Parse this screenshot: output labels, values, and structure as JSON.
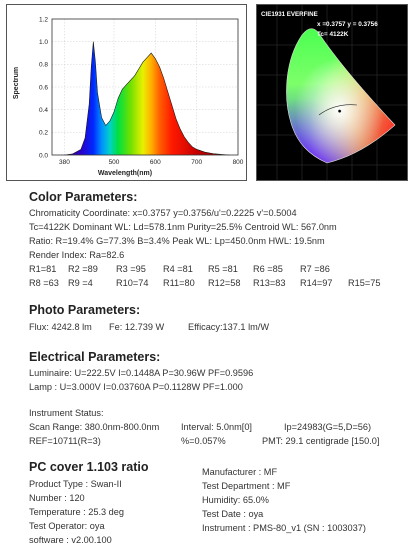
{
  "chart_data": [
    {
      "type": "area",
      "xlabel": "Wavelength(nm)",
      "ylabel": "Spectrum",
      "xlim": [
        350,
        800
      ],
      "ylim": [
        0,
        1.2
      ],
      "x_ticks": [
        "380",
        "500",
        "600",
        "700",
        "800"
      ],
      "y_ticks": [
        "0.0",
        "0.2",
        "0.4",
        "0.6",
        "0.8",
        "1.0",
        "1.2"
      ],
      "grid": true,
      "x": [
        380,
        400,
        420,
        430,
        440,
        445,
        450,
        455,
        460,
        470,
        480,
        490,
        500,
        510,
        520,
        530,
        540,
        550,
        560,
        570,
        580,
        590,
        600,
        610,
        620,
        630,
        640,
        650,
        660,
        670,
        680,
        690,
        700,
        720,
        740,
        760,
        780
      ],
      "values": [
        0.0,
        0.01,
        0.05,
        0.15,
        0.45,
        0.78,
        1.0,
        0.82,
        0.55,
        0.33,
        0.26,
        0.3,
        0.38,
        0.5,
        0.58,
        0.62,
        0.66,
        0.7,
        0.76,
        0.82,
        0.86,
        0.9,
        0.85,
        0.78,
        0.68,
        0.56,
        0.44,
        0.32,
        0.23,
        0.16,
        0.11,
        0.07,
        0.05,
        0.025,
        0.012,
        0.005,
        0.0
      ]
    },
    {
      "type": "scatter",
      "title": "CIE1931 EVERFINE",
      "annotations": [
        "x =0.3757  y = 0.3756",
        "Tc= 4122K"
      ],
      "x": [
        0.3757
      ],
      "values": [
        0.3756
      ]
    }
  ],
  "sections": {
    "color_title": "Color Parameters:",
    "photo_title": "Photo Parameters:",
    "elec_title": "Electrical Parameters:",
    "pc_title": "PC cover 1.103 ratio"
  },
  "color_lines": [
    "Chromaticity Coordinate: x=0.3757    y=0.3756/u'=0.2225     v'=0.5004",
    "Tc=4122K     Dominant WL: Ld=578.1nm     Purity=25.5%     Centroid  WL: 567.0nm",
    "Ratio: R=19.4%  G=77.3%  B=3.4%    Peak WL: Lp=450.0nm    HWL: 19.5nm",
    "Render Index: Ra=82.6"
  ],
  "render_rows": [
    [
      "R1=81",
      "R2 =89",
      "R3 =95",
      "R4 =81",
      "R5 =81",
      "R6 =85",
      "R7 =86"
    ],
    [
      "R8 =63",
      "R9 =4",
      "R10=74",
      "R11=80",
      "R12=58",
      "R13=83",
      "R14=97",
      "R15=75"
    ]
  ],
  "photo": {
    "flux": "Flux: 4242.8 lm",
    "fe": "Fe: 12.739 W",
    "efficacy": "Efficacy:137.1 lm/W"
  },
  "elec_lines": [
    "Luminaire: U=222.5V      I=0.1448A      P=30.96W      PF=0.9596",
    "Lamp : U=3.000V       I=0.03760A     P=0.1128W      PF=1.000"
  ],
  "instrument": {
    "title": "Instrument Status:",
    "row1": [
      "Scan Range: 380.0nm-800.0nm",
      "Interval: 5.0nm[0]",
      "Ip=24983(G=5,D=56)"
    ],
    "row2": [
      "REF=10711(R=3)",
      "%=0.057%",
      "PMT: 29.1 centigrade [150.0]"
    ]
  },
  "pc_left": [
    "Product Type :  Swan-II",
    "Number : 120",
    "Temperature : 25.3 deg",
    "Test Operator: oya",
    "software : v2.00.100"
  ],
  "pc_right": [
    "Manufacturer : MF",
    "Test Department : MF",
    "Humidity: 65.0%",
    "Test Date : oya",
    "Instrument : PMS-80_v1 (SN : 1003037)"
  ]
}
